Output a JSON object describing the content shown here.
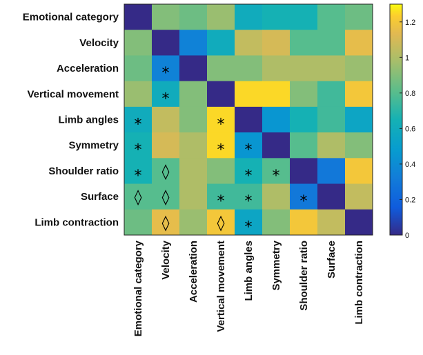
{
  "chart_data": {
    "type": "heatmap",
    "rows": [
      "Emotional category",
      "Velocity",
      "Acceleration",
      "Vertical movement",
      "Limb angles",
      "Symmetry",
      "Shoulder ratio",
      "Surface",
      "Limb contraction"
    ],
    "columns": [
      "Emotional category",
      "Velocity",
      "Acceleration",
      "Vertical movement",
      "Limb angles",
      "Symmetry",
      "Shoulder ratio",
      "Surface",
      "Limb contraction"
    ],
    "values": [
      [
        0.0,
        0.9,
        0.85,
        0.95,
        0.6,
        0.65,
        0.65,
        0.8,
        0.85
      ],
      [
        0.9,
        0.0,
        0.35,
        0.6,
        1.05,
        1.1,
        0.8,
        0.8,
        1.15
      ],
      [
        0.85,
        0.35,
        0.0,
        0.9,
        0.9,
        1.0,
        1.0,
        1.0,
        0.95
      ],
      [
        0.95,
        0.6,
        0.9,
        0.0,
        1.25,
        1.25,
        0.9,
        0.75,
        1.2
      ],
      [
        0.6,
        1.05,
        0.9,
        1.25,
        0.0,
        0.45,
        0.65,
        0.75,
        0.55
      ],
      [
        0.65,
        1.1,
        1.0,
        1.25,
        0.45,
        0.0,
        0.8,
        1.0,
        0.9
      ],
      [
        0.65,
        0.8,
        1.0,
        0.9,
        0.65,
        0.8,
        0.0,
        0.3,
        1.2
      ],
      [
        0.8,
        0.8,
        1.0,
        0.75,
        0.75,
        1.0,
        0.3,
        0.0,
        1.05
      ],
      [
        0.85,
        1.15,
        0.95,
        1.2,
        0.55,
        0.9,
        1.2,
        1.05,
        0.0
      ]
    ],
    "markers": [
      {
        "row": 2,
        "col": 1,
        "symbol": "*"
      },
      {
        "row": 3,
        "col": 1,
        "symbol": "*"
      },
      {
        "row": 4,
        "col": 0,
        "symbol": "*"
      },
      {
        "row": 4,
        "col": 3,
        "symbol": "*"
      },
      {
        "row": 5,
        "col": 0,
        "symbol": "*"
      },
      {
        "row": 5,
        "col": 3,
        "symbol": "*"
      },
      {
        "row": 5,
        "col": 4,
        "symbol": "*"
      },
      {
        "row": 6,
        "col": 0,
        "symbol": "*"
      },
      {
        "row": 6,
        "col": 1,
        "symbol": "◊"
      },
      {
        "row": 6,
        "col": 4,
        "symbol": "*"
      },
      {
        "row": 6,
        "col": 5,
        "symbol": "*"
      },
      {
        "row": 7,
        "col": 0,
        "symbol": "◊"
      },
      {
        "row": 7,
        "col": 1,
        "symbol": "◊"
      },
      {
        "row": 7,
        "col": 3,
        "symbol": "*"
      },
      {
        "row": 7,
        "col": 4,
        "symbol": "*"
      },
      {
        "row": 7,
        "col": 6,
        "symbol": "*"
      },
      {
        "row": 8,
        "col": 1,
        "symbol": "◊"
      },
      {
        "row": 8,
        "col": 3,
        "symbol": "◊"
      },
      {
        "row": 8,
        "col": 4,
        "symbol": "*"
      }
    ],
    "colorbar": {
      "ticks": [
        "0",
        "0.2",
        "0.4",
        "0.6",
        "0.8",
        "1",
        "1.2"
      ],
      "tick_values": [
        0,
        0.2,
        0.4,
        0.6,
        0.8,
        1.0,
        1.2
      ],
      "range": [
        0,
        1.3
      ],
      "colormap": "parula"
    },
    "title": "",
    "xlabel": "",
    "ylabel": ""
  }
}
